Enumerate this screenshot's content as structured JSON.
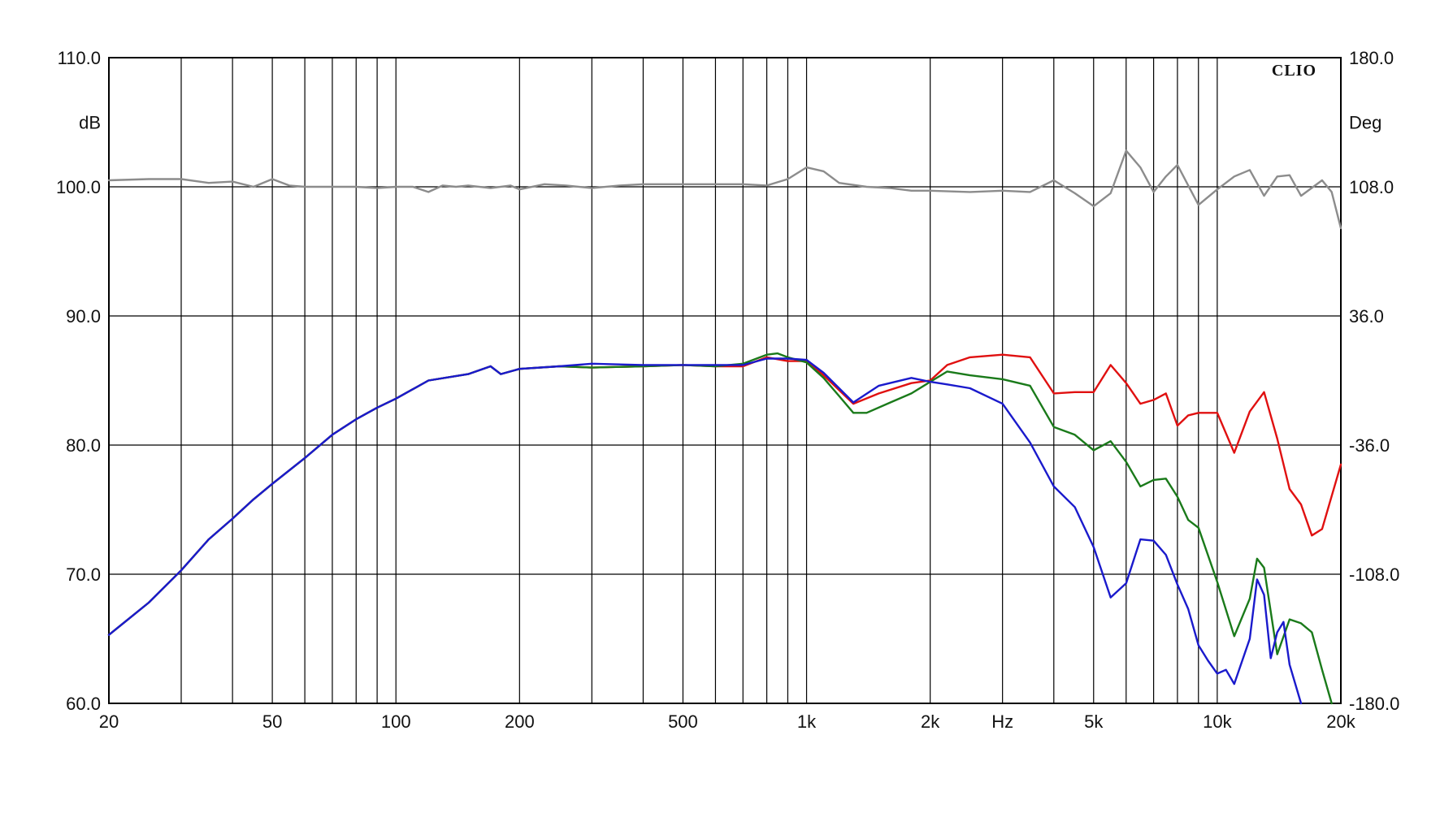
{
  "chart_data": {
    "type": "line",
    "brand": "CLIO",
    "x_unit_label": "Hz",
    "y_left_unit": "dB",
    "y_right_unit": "Deg",
    "x_scale": "log",
    "xlim": [
      20,
      20000
    ],
    "ylim": [
      60,
      110
    ],
    "y2lim": [
      -180,
      180
    ],
    "grid": true,
    "x_ticks": [
      {
        "value": 20,
        "label": "20"
      },
      {
        "value": 50,
        "label": "50"
      },
      {
        "value": 100,
        "label": "100"
      },
      {
        "value": 200,
        "label": "200"
      },
      {
        "value": 500,
        "label": "500"
      },
      {
        "value": 1000,
        "label": "1k"
      },
      {
        "value": 2000,
        "label": "2k"
      },
      {
        "value": 5000,
        "label": "5k"
      },
      {
        "value": 10000,
        "label": "10k"
      },
      {
        "value": 20000,
        "label": "20k"
      }
    ],
    "y_ticks": [
      {
        "value": 60,
        "label": "60.0"
      },
      {
        "value": 70,
        "label": "70.0"
      },
      {
        "value": 80,
        "label": "80.0"
      },
      {
        "value": 90,
        "label": "90.0"
      },
      {
        "value": 100,
        "label": "100.0"
      },
      {
        "value": 110,
        "label": "110.0"
      }
    ],
    "y2_ticks": [
      {
        "value": -180,
        "label": "-180.0"
      },
      {
        "value": -108,
        "label": "-108.0"
      },
      {
        "value": -36,
        "label": "-36.0"
      },
      {
        "value": 36,
        "label": "36.0"
      },
      {
        "value": 108,
        "label": "108.0"
      },
      {
        "value": 180,
        "label": "180.0"
      }
    ],
    "series": [
      {
        "color": "#8c8c8c",
        "x": [
          20,
          25,
          30,
          35,
          40,
          45,
          50,
          55,
          60,
          70,
          80,
          90,
          100,
          110,
          120,
          130,
          140,
          150,
          170,
          190,
          200,
          230,
          260,
          300,
          350,
          400,
          500,
          600,
          700,
          800,
          900,
          1000,
          1100,
          1200,
          1400,
          1600,
          1800,
          2000,
          2500,
          3000,
          3500,
          4000,
          4500,
          5000,
          5500,
          6000,
          6500,
          7000,
          7500,
          8000,
          8500,
          9000,
          10000,
          11000,
          12000,
          13000,
          14000,
          15000,
          16000,
          18000,
          19000,
          20000
        ],
        "values": [
          100.5,
          100.6,
          100.6,
          100.3,
          100.4,
          100.0,
          100.6,
          100.1,
          100.0,
          100.0,
          100.0,
          99.9,
          100.0,
          100.0,
          99.6,
          100.1,
          100.0,
          100.1,
          99.9,
          100.1,
          99.8,
          100.2,
          100.1,
          99.9,
          100.1,
          100.2,
          100.2,
          100.2,
          100.2,
          100.1,
          100.6,
          101.5,
          101.2,
          100.3,
          100.0,
          99.9,
          99.7,
          99.7,
          99.6,
          99.7,
          99.6,
          100.5,
          99.5,
          98.5,
          99.5,
          102.8,
          101.5,
          99.6,
          100.8,
          101.7,
          100.1,
          98.6,
          99.8,
          100.8,
          101.3,
          99.3,
          100.8,
          100.9,
          99.3,
          100.5,
          99.6,
          96.8
        ]
      },
      {
        "color": "#e01010",
        "x": [
          20,
          25,
          30,
          35,
          40,
          45,
          50,
          60,
          70,
          80,
          90,
          100,
          120,
          150,
          170,
          180,
          200,
          250,
          300,
          400,
          500,
          600,
          700,
          800,
          900,
          1000,
          1100,
          1300,
          1500,
          1800,
          2000,
          2200,
          2500,
          3000,
          3500,
          4000,
          4500,
          5000,
          5500,
          6000,
          6500,
          7000,
          7500,
          8000,
          8500,
          9000,
          10000,
          11000,
          12000,
          13000,
          14000,
          15000,
          16000,
          17000,
          18000,
          20000
        ],
        "values": [
          65.3,
          67.8,
          70.3,
          72.7,
          74.3,
          75.8,
          77.0,
          79.0,
          80.8,
          82.0,
          82.9,
          83.6,
          85.0,
          85.5,
          86.1,
          85.5,
          85.9,
          86.1,
          86.0,
          86.1,
          86.2,
          86.1,
          86.1,
          86.8,
          86.5,
          86.5,
          85.4,
          83.2,
          84.0,
          84.8,
          85.0,
          86.2,
          86.8,
          87.0,
          86.8,
          84.0,
          84.1,
          84.1,
          86.2,
          84.8,
          83.2,
          83.5,
          84.0,
          81.5,
          82.3,
          82.5,
          82.5,
          79.4,
          82.6,
          84.1,
          80.5,
          76.6,
          75.4,
          73.0,
          73.5,
          78.5
        ]
      },
      {
        "color": "#1a7a1a",
        "x": [
          20,
          25,
          30,
          35,
          40,
          45,
          50,
          60,
          70,
          80,
          90,
          100,
          120,
          150,
          170,
          180,
          200,
          250,
          300,
          400,
          500,
          600,
          700,
          800,
          850,
          900,
          1000,
          1100,
          1200,
          1300,
          1400,
          1600,
          1800,
          2000,
          2200,
          2500,
          3000,
          3500,
          4000,
          4500,
          5000,
          5500,
          6000,
          6500,
          7000,
          7500,
          8000,
          8500,
          9000,
          10000,
          11000,
          12000,
          12500,
          13000,
          14000,
          15000,
          16000,
          17000,
          18000,
          19000
        ],
        "values": [
          65.3,
          67.8,
          70.3,
          72.7,
          74.3,
          75.8,
          77.0,
          79.0,
          80.8,
          82.0,
          82.9,
          83.6,
          85.0,
          85.5,
          86.1,
          85.5,
          85.9,
          86.1,
          86.0,
          86.1,
          86.2,
          86.1,
          86.3,
          87.0,
          87.1,
          86.8,
          86.4,
          85.2,
          83.8,
          82.5,
          82.5,
          83.3,
          84.0,
          84.9,
          85.7,
          85.4,
          85.1,
          84.6,
          81.4,
          80.8,
          79.6,
          80.3,
          78.7,
          76.8,
          77.3,
          77.4,
          76.0,
          74.2,
          73.6,
          69.4,
          65.2,
          68.1,
          71.2,
          70.5,
          63.8,
          66.5,
          66.2,
          65.5,
          62.6,
          60.0
        ]
      },
      {
        "color": "#1a1acc",
        "x": [
          20,
          25,
          30,
          35,
          40,
          45,
          50,
          60,
          70,
          80,
          90,
          100,
          120,
          150,
          170,
          180,
          200,
          250,
          300,
          400,
          500,
          600,
          700,
          800,
          900,
          1000,
          1100,
          1300,
          1500,
          1800,
          2000,
          2200,
          2500,
          3000,
          3500,
          4000,
          4500,
          5000,
          5500,
          6000,
          6500,
          7000,
          7500,
          8000,
          8500,
          9000,
          9500,
          10000,
          10500,
          11000,
          12000,
          12500,
          13000,
          13500,
          14000,
          14500,
          15000,
          16000
        ],
        "values": [
          65.3,
          67.8,
          70.3,
          72.7,
          74.3,
          75.8,
          77.0,
          79.0,
          80.8,
          82.0,
          82.9,
          83.6,
          85.0,
          85.5,
          86.1,
          85.5,
          85.9,
          86.1,
          86.3,
          86.2,
          86.2,
          86.2,
          86.2,
          86.7,
          86.7,
          86.6,
          85.6,
          83.3,
          84.6,
          85.2,
          84.9,
          84.7,
          84.4,
          83.2,
          80.2,
          76.8,
          75.2,
          72.1,
          68.2,
          69.3,
          72.7,
          72.6,
          71.5,
          69.2,
          67.3,
          64.5,
          63.3,
          62.3,
          62.6,
          61.5,
          65.0,
          69.6,
          68.4,
          63.5,
          65.5,
          66.3,
          63.0,
          59.8
        ]
      }
    ]
  }
}
